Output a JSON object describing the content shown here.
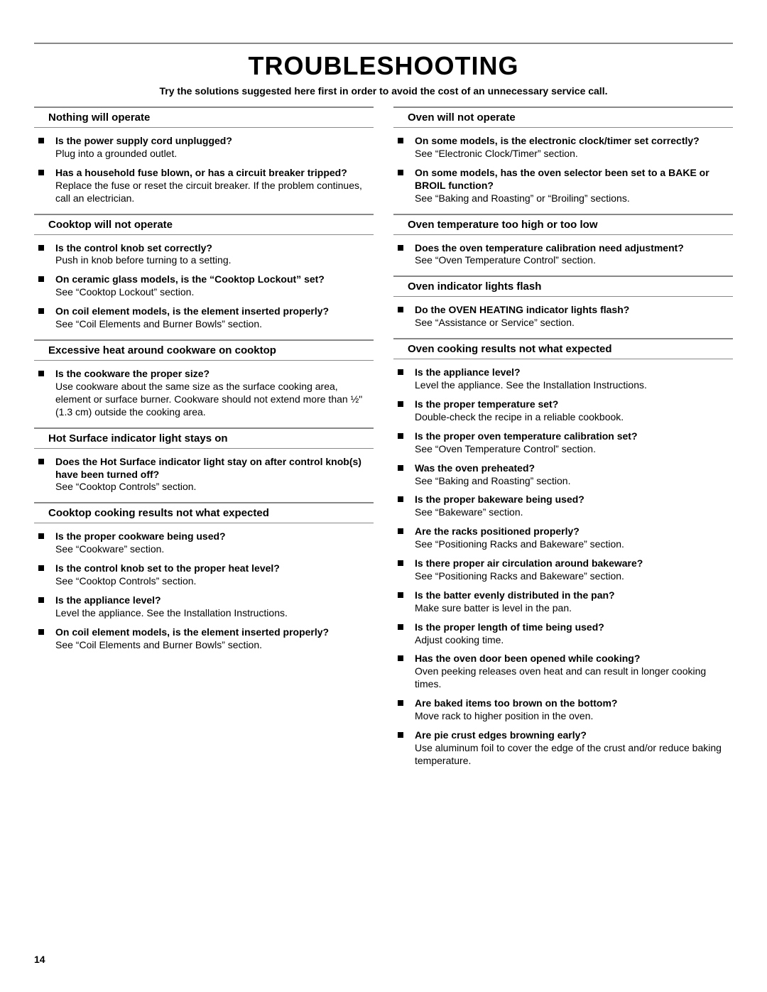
{
  "page": {
    "title": "TROUBLESHOOTING",
    "intro": "Try the solutions suggested here first in order to avoid the cost of an unnecessary service call.",
    "pageNumber": "14"
  },
  "left": [
    {
      "heading": "Nothing will operate",
      "items": [
        {
          "q": "Is the power supply cord unplugged?",
          "a": "Plug into a grounded outlet."
        },
        {
          "q": "Has a household fuse blown, or has a circuit breaker tripped?",
          "a": "Replace the fuse or reset the circuit breaker. If the problem continues, call an electrician."
        }
      ]
    },
    {
      "heading": "Cooktop will not operate",
      "items": [
        {
          "q": "Is the control knob set correctly?",
          "a": "Push in knob before turning to a setting."
        },
        {
          "q": "On ceramic glass models, is the “Cooktop Lockout” set?",
          "a": "See “Cooktop Lockout” section."
        },
        {
          "q": "On coil element models, is the element inserted properly?",
          "a": "See “Coil Elements and Burner Bowls” section."
        }
      ]
    },
    {
      "heading": "Excessive heat around cookware on cooktop",
      "items": [
        {
          "q": "Is the cookware the proper size?",
          "a": "Use cookware about the same size as the surface cooking area, element or surface burner. Cookware should not extend more than ½\" (1.3 cm) outside the cooking area."
        }
      ]
    },
    {
      "heading": "Hot Surface indicator light stays on",
      "items": [
        {
          "q": "Does the Hot Surface indicator light stay on after control knob(s) have been turned off?",
          "a": "See “Cooktop Controls” section."
        }
      ]
    },
    {
      "heading": "Cooktop cooking results not what expected",
      "items": [
        {
          "q": "Is the proper cookware being used?",
          "a": "See “Cookware” section."
        },
        {
          "q": "Is the control knob set to the proper heat level?",
          "a": "See “Cooktop Controls” section."
        },
        {
          "q": "Is the appliance level?",
          "a": "Level the appliance. See the Installation Instructions."
        },
        {
          "q": "On coil element models, is the element inserted properly?",
          "a": "See “Coil Elements and Burner Bowls” section."
        }
      ]
    }
  ],
  "right": [
    {
      "heading": "Oven will not operate",
      "items": [
        {
          "q": "On some models, is the electronic clock/timer set correctly?",
          "a": "See “Electronic Clock/Timer” section."
        },
        {
          "q": "On some models, has the oven selector been set to a BAKE or BROIL function?",
          "a": "See “Baking and Roasting” or “Broiling” sections."
        }
      ]
    },
    {
      "heading": "Oven temperature too high or too low",
      "items": [
        {
          "q": "Does the oven temperature calibration need adjustment?",
          "a": "See “Oven Temperature Control” section."
        }
      ]
    },
    {
      "heading": "Oven indicator lights flash",
      "items": [
        {
          "q": "Do the OVEN HEATING indicator lights flash?",
          "a": "See “Assistance or Service” section."
        }
      ]
    },
    {
      "heading": "Oven cooking results not what expected",
      "items": [
        {
          "q": "Is the appliance level?",
          "a": "Level the appliance. See the Installation Instructions."
        },
        {
          "q": "Is the proper temperature set?",
          "a": "Double-check the recipe in a reliable cookbook."
        },
        {
          "q": "Is the proper oven temperature calibration set?",
          "a": "See “Oven Temperature Control” section."
        },
        {
          "q": "Was the oven preheated?",
          "a": "See “Baking and Roasting” section."
        },
        {
          "q": "Is the proper bakeware being used?",
          "a": "See “Bakeware” section."
        },
        {
          "q": "Are the racks positioned properly?",
          "a": "See “Positioning Racks and Bakeware” section."
        },
        {
          "q": "Is there proper air circulation around bakeware?",
          "a": "See “Positioning Racks and Bakeware” section."
        },
        {
          "q": "Is the batter evenly distributed in the pan?",
          "a": "Make sure batter is level in the pan."
        },
        {
          "q": "Is the proper length of time being used?",
          "a": "Adjust cooking time."
        },
        {
          "q": "Has the oven door been opened while cooking?",
          "a": "Oven peeking releases oven heat and can result in longer cooking times."
        },
        {
          "q": "Are baked items too brown on the bottom?",
          "a": "Move rack to higher position in the oven."
        },
        {
          "q": "Are pie crust edges browning early?",
          "a": "Use aluminum foil to cover the edge of the crust and/or reduce baking temperature."
        }
      ]
    }
  ]
}
